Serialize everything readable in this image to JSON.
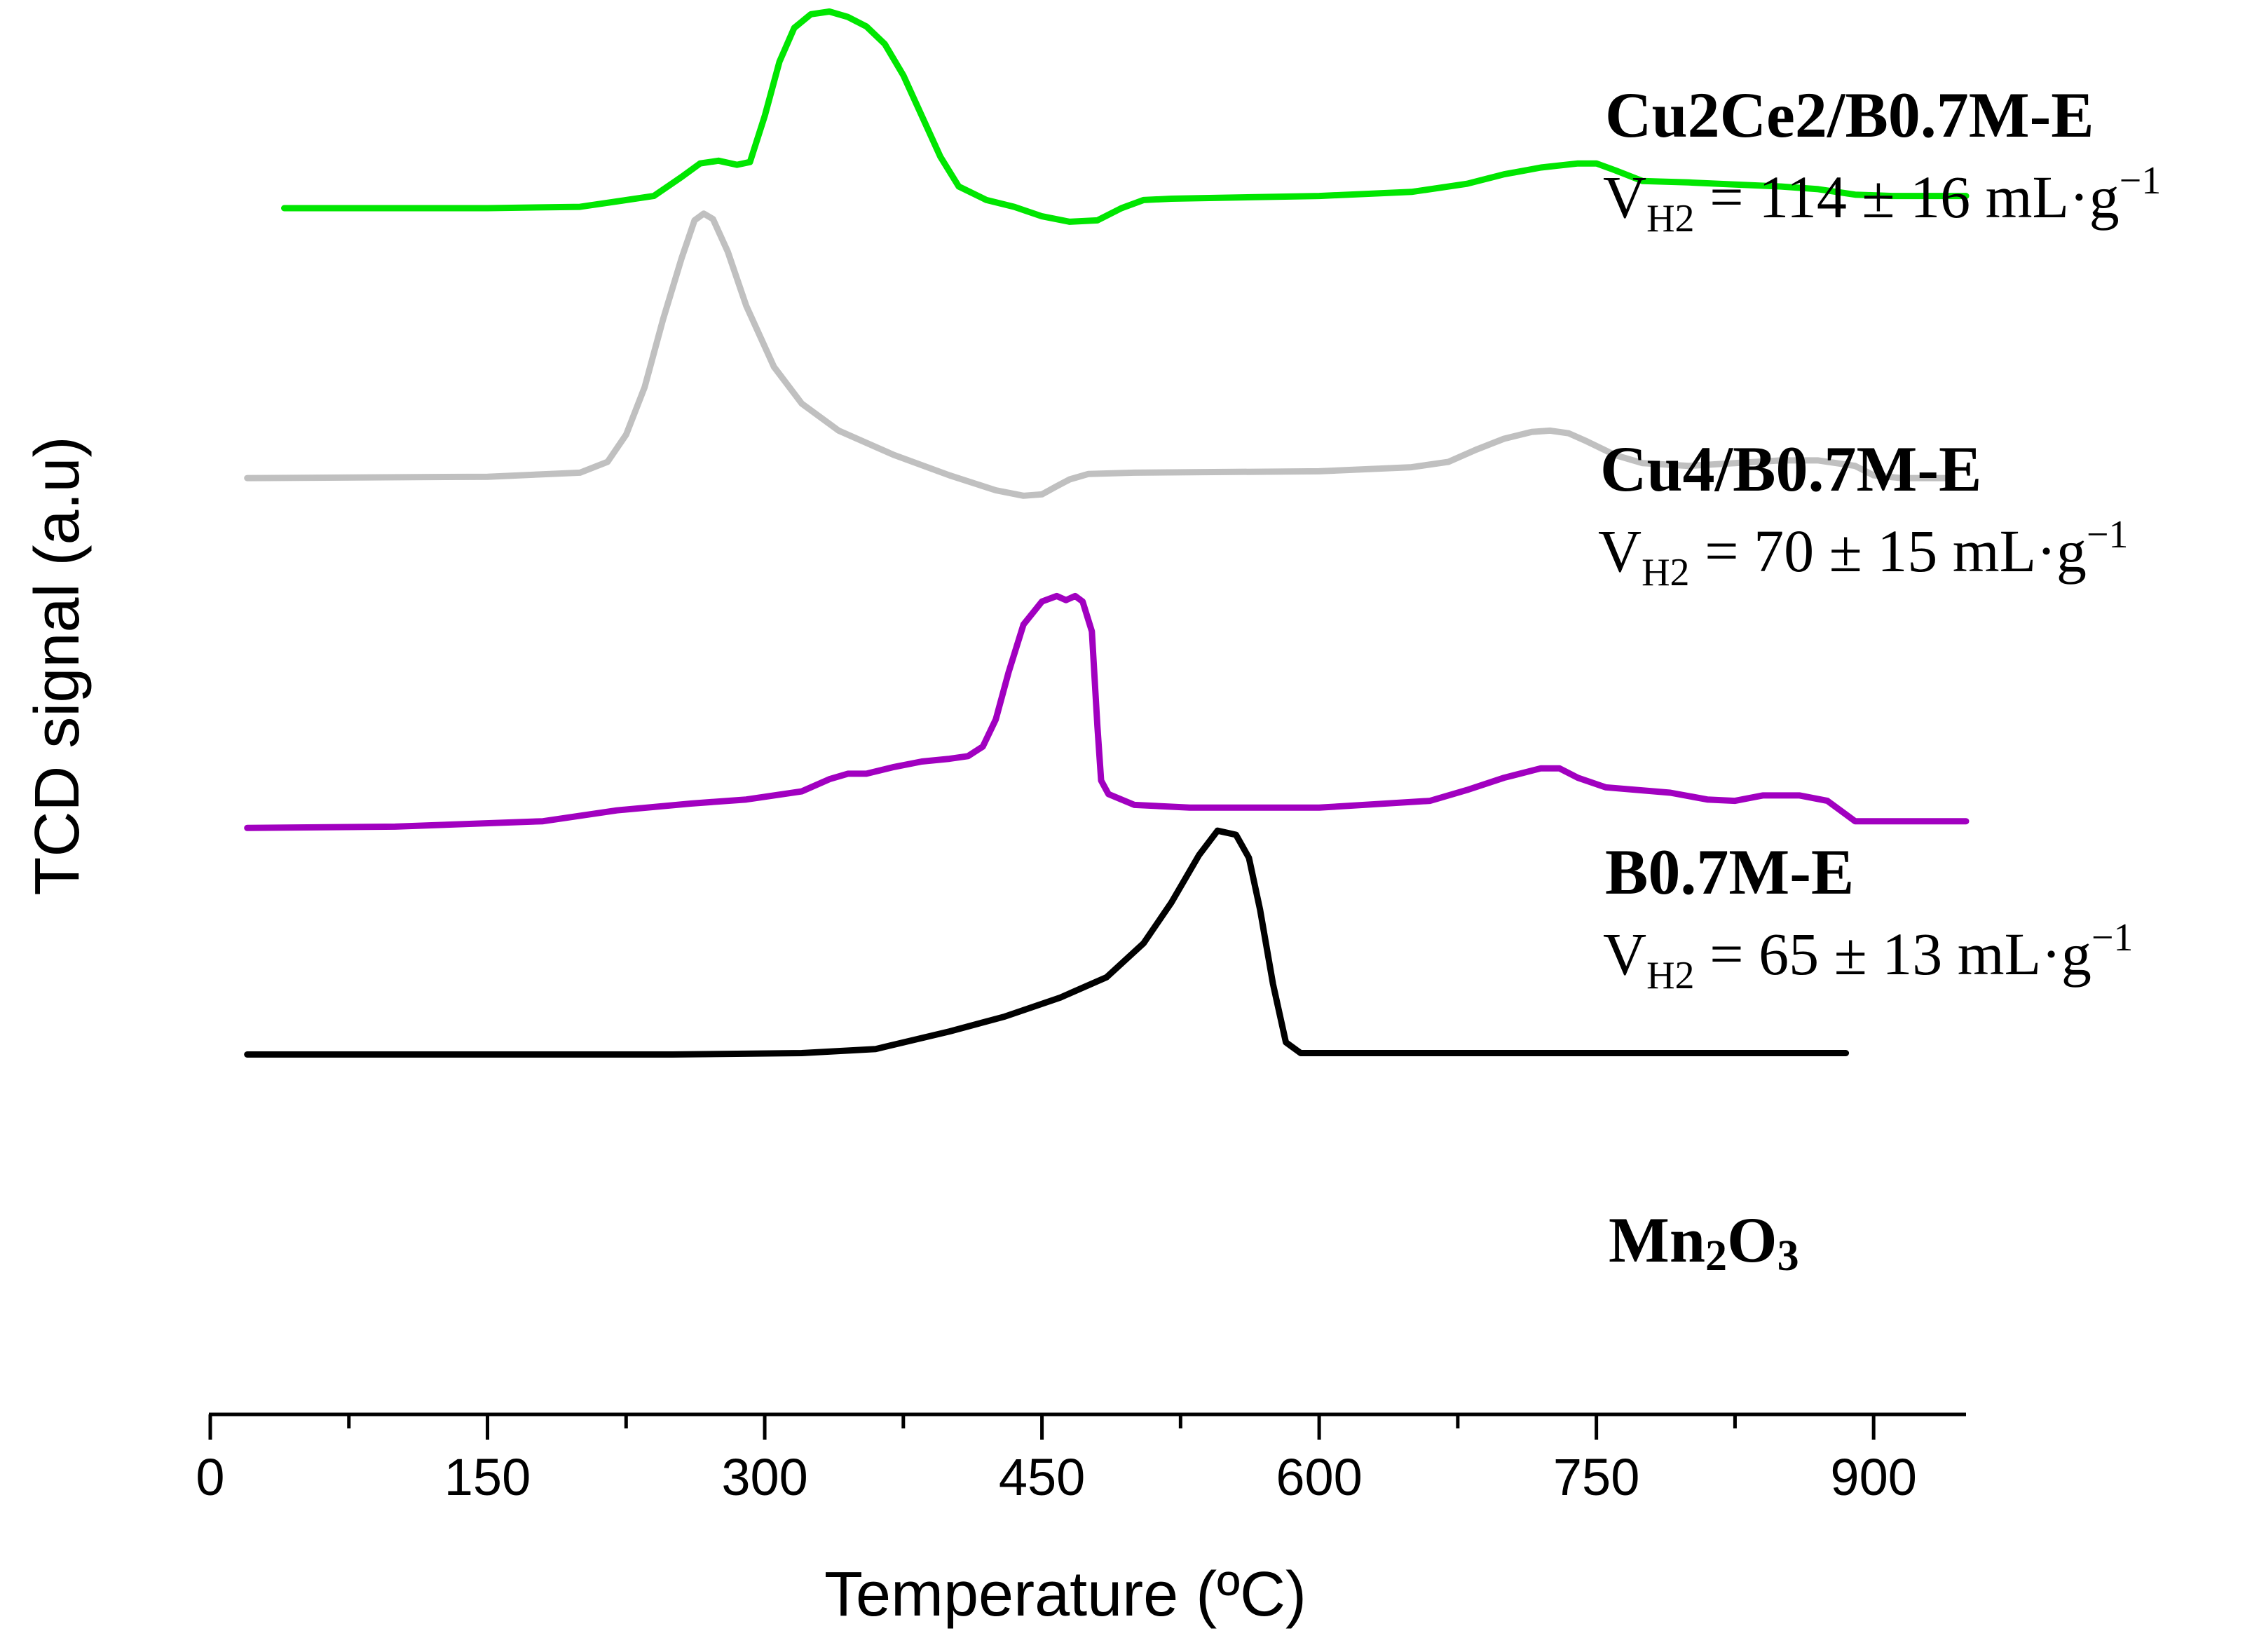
{
  "chart_data": {
    "type": "line",
    "xlabel": "Temperature (ºC)",
    "ylabel": "TCD signal (a.u)",
    "xlim": [
      0,
      950
    ],
    "xticks": [
      0,
      150,
      300,
      450,
      600,
      750,
      900
    ],
    "xtick_labels": [
      "0",
      "150",
      "300",
      "450",
      "600",
      "750",
      "900"
    ],
    "ylim": [
      0,
      100
    ],
    "yticks": false,
    "grid": false,
    "series": [
      {
        "name": "Cu2Ce2/B0.7M-E",
        "color": "#00e600",
        "volume_prefix": "V",
        "volume_sub": "H2",
        "volume_rest": " = 114 ± 16 mL·g",
        "volume_sup": "−1",
        "points": [
          [
            40,
            86.2
          ],
          [
            150,
            86.2
          ],
          [
            200,
            86.3
          ],
          [
            240,
            87.1
          ],
          [
            255,
            88.5
          ],
          [
            265,
            89.5
          ],
          [
            275,
            89.7
          ],
          [
            285,
            89.4
          ],
          [
            292,
            89.6
          ],
          [
            300,
            93
          ],
          [
            308,
            97
          ],
          [
            316,
            99.5
          ],
          [
            325,
            100.5
          ],
          [
            335,
            100.7
          ],
          [
            345,
            100.3
          ],
          [
            355,
            99.6
          ],
          [
            365,
            98.3
          ],
          [
            375,
            96
          ],
          [
            385,
            93
          ],
          [
            395,
            90
          ],
          [
            405,
            87.8
          ],
          [
            420,
            86.8
          ],
          [
            435,
            86.3
          ],
          [
            450,
            85.6
          ],
          [
            465,
            85.2
          ],
          [
            480,
            85.3
          ],
          [
            493,
            86.2
          ],
          [
            505,
            86.8
          ],
          [
            520,
            86.9
          ],
          [
            600,
            87.1
          ],
          [
            650,
            87.4
          ],
          [
            680,
            88
          ],
          [
            700,
            88.7
          ],
          [
            720,
            89.2
          ],
          [
            740,
            89.5
          ],
          [
            750,
            89.5
          ],
          [
            760,
            89
          ],
          [
            775,
            88.2
          ],
          [
            800,
            88.1
          ],
          [
            850,
            87.8
          ],
          [
            870,
            87.6
          ],
          [
            890,
            87.2
          ],
          [
            910,
            87.1
          ],
          [
            950,
            87.1
          ]
        ]
      },
      {
        "name": "Cu4/B0.7M-E",
        "color": "#c0c0c0",
        "volume_prefix": "V",
        "volume_sub": "H2",
        "volume_rest": " = 70 ± 15 mL·g",
        "volume_sup": "−1",
        "points": [
          [
            20,
            66.3
          ],
          [
            150,
            66.4
          ],
          [
            200,
            66.7
          ],
          [
            215,
            67.5
          ],
          [
            225,
            69.5
          ],
          [
            235,
            73
          ],
          [
            245,
            78
          ],
          [
            255,
            82.5
          ],
          [
            262,
            85.3
          ],
          [
            267,
            85.8
          ],
          [
            272,
            85.4
          ],
          [
            280,
            83
          ],
          [
            290,
            79
          ],
          [
            305,
            74.5
          ],
          [
            320,
            71.8
          ],
          [
            340,
            69.8
          ],
          [
            370,
            68
          ],
          [
            400,
            66.5
          ],
          [
            425,
            65.4
          ],
          [
            440,
            65
          ],
          [
            450,
            65.1
          ],
          [
            458,
            65.7
          ],
          [
            465,
            66.2
          ],
          [
            475,
            66.6
          ],
          [
            500,
            66.7
          ],
          [
            600,
            66.8
          ],
          [
            650,
            67.1
          ],
          [
            670,
            67.5
          ],
          [
            685,
            68.4
          ],
          [
            700,
            69.2
          ],
          [
            715,
            69.7
          ],
          [
            725,
            69.8
          ],
          [
            735,
            69.6
          ],
          [
            745,
            69
          ],
          [
            760,
            68
          ],
          [
            775,
            67.4
          ],
          [
            800,
            67.2
          ],
          [
            825,
            67.4
          ],
          [
            850,
            67.6
          ],
          [
            870,
            67.6
          ],
          [
            890,
            67.2
          ],
          [
            900,
            66.5
          ],
          [
            915,
            66.3
          ],
          [
            940,
            66.3
          ]
        ]
      },
      {
        "name": "B0.7M-E",
        "color": "#a100c0",
        "volume_prefix": "V",
        "volume_sub": "H2",
        "volume_rest": " = 65 ± 13 mL·g",
        "volume_sup": "−1",
        "points": [
          [
            20,
            40.5
          ],
          [
            100,
            40.6
          ],
          [
            180,
            41
          ],
          [
            220,
            41.8
          ],
          [
            260,
            42.3
          ],
          [
            290,
            42.6
          ],
          [
            320,
            43.2
          ],
          [
            335,
            44.1
          ],
          [
            345,
            44.5
          ],
          [
            355,
            44.5
          ],
          [
            370,
            45
          ],
          [
            385,
            45.4
          ],
          [
            400,
            45.6
          ],
          [
            410,
            45.8
          ],
          [
            418,
            46.5
          ],
          [
            425,
            48.5
          ],
          [
            432,
            52
          ],
          [
            440,
            55.5
          ],
          [
            450,
            57.2
          ],
          [
            458,
            57.6
          ],
          [
            463,
            57.3
          ],
          [
            468,
            57.6
          ],
          [
            472,
            57.2
          ],
          [
            477,
            55
          ],
          [
            480,
            48
          ],
          [
            482,
            44
          ],
          [
            486,
            43
          ],
          [
            500,
            42.2
          ],
          [
            530,
            42
          ],
          [
            600,
            42
          ],
          [
            660,
            42.5
          ],
          [
            680,
            43.3
          ],
          [
            700,
            44.2
          ],
          [
            720,
            44.9
          ],
          [
            730,
            44.9
          ],
          [
            740,
            44.2
          ],
          [
            755,
            43.5
          ],
          [
            790,
            43.1
          ],
          [
            810,
            42.6
          ],
          [
            825,
            42.5
          ],
          [
            840,
            42.9
          ],
          [
            860,
            42.9
          ],
          [
            875,
            42.5
          ],
          [
            885,
            41.5
          ],
          [
            890,
            41
          ],
          [
            910,
            41
          ],
          [
            950,
            41
          ]
        ]
      },
      {
        "name": "Mn2O3",
        "color": "#000000",
        "points": [
          [
            20,
            23.8
          ],
          [
            150,
            23.8
          ],
          [
            250,
            23.8
          ],
          [
            320,
            23.9
          ],
          [
            360,
            24.2
          ],
          [
            400,
            25.5
          ],
          [
            430,
            26.6
          ],
          [
            460,
            28
          ],
          [
            485,
            29.5
          ],
          [
            505,
            32
          ],
          [
            520,
            35
          ],
          [
            535,
            38.5
          ],
          [
            545,
            40.3
          ],
          [
            555,
            40
          ],
          [
            562,
            38.3
          ],
          [
            568,
            34.5
          ],
          [
            575,
            29
          ],
          [
            582,
            24.7
          ],
          [
            590,
            23.9
          ],
          [
            610,
            23.9
          ],
          [
            700,
            23.9
          ],
          [
            800,
            23.9
          ],
          [
            885,
            23.9
          ]
        ]
      }
    ]
  }
}
